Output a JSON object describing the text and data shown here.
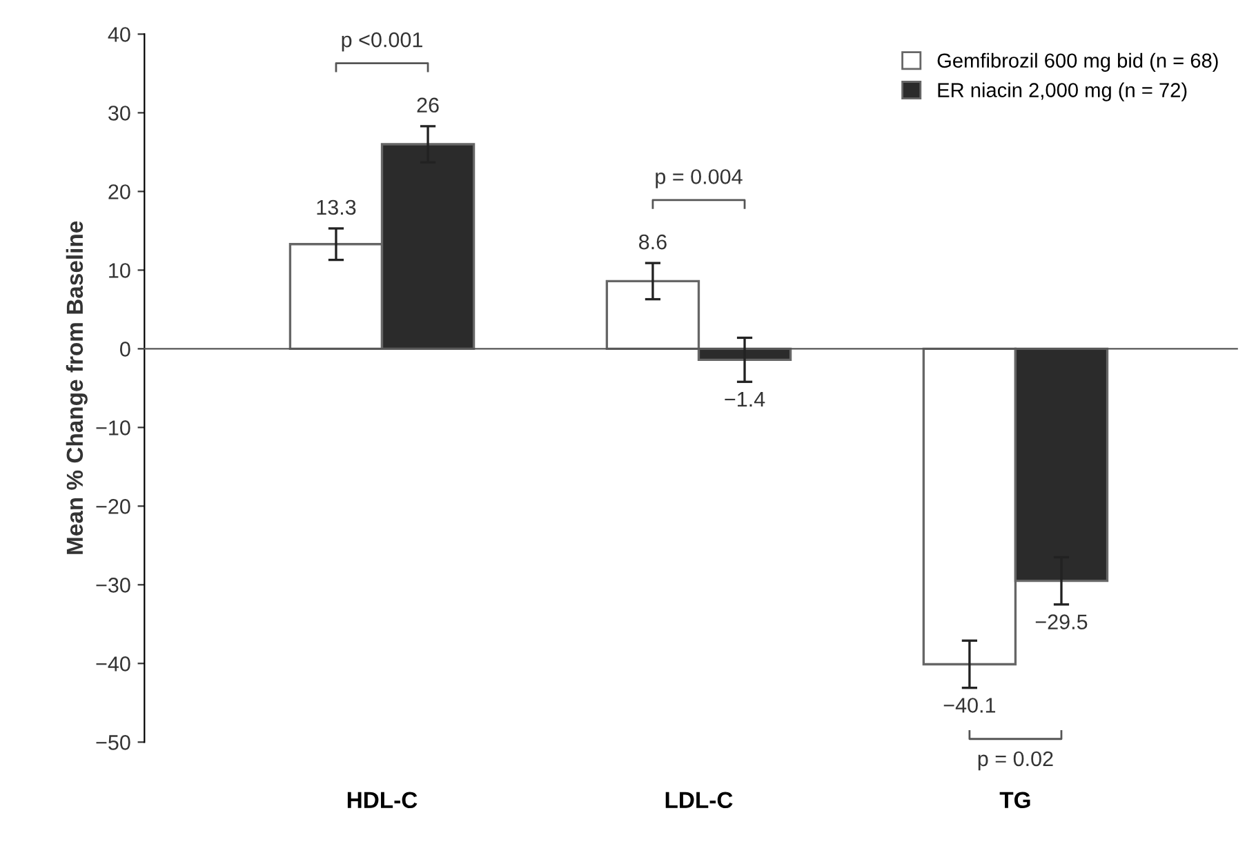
{
  "chart_data": {
    "type": "bar",
    "ylabel": "Mean % Change from Baseline",
    "categories": [
      "HDL-C",
      "LDL-C",
      "TG"
    ],
    "series": [
      {
        "name": "Gemfibrozil 600 mg bid (n = 68)",
        "color": "#ffffff",
        "values": [
          13.3,
          8.6,
          -40.1
        ],
        "errors": [
          2,
          2.3,
          3
        ]
      },
      {
        "name": "ER niacin 2,000 mg (n = 72)",
        "color": "#2b2b2b",
        "values": [
          26,
          -1.4,
          -29.5
        ],
        "errors": [
          2.3,
          2.8,
          3
        ]
      }
    ],
    "ylim": [
      -50,
      40
    ],
    "yticks": [
      -50,
      -40,
      -30,
      -20,
      -10,
      0,
      10,
      20,
      30,
      40
    ],
    "annotations": [
      "p <0.001",
      "p = 0.004",
      "p = 0.02"
    ],
    "data_labels": true,
    "legend": "top right"
  }
}
